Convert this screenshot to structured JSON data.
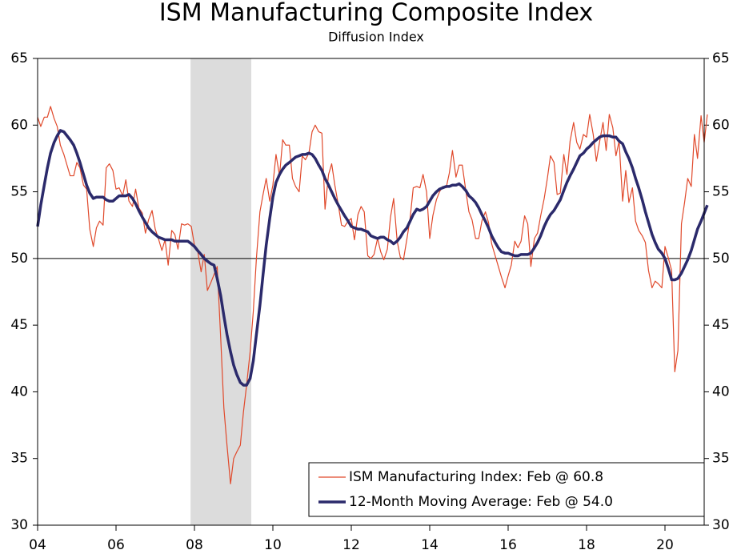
{
  "chart_data": {
    "type": "line",
    "title": "ISM Manufacturing Composite Index",
    "subtitle": "Diffusion Index",
    "x": [
      2004.0,
      2004.08,
      2004.17,
      2004.25,
      2004.33,
      2004.42,
      2004.5,
      2004.58,
      2004.67,
      2004.75,
      2004.83,
      2004.92,
      2005.0,
      2005.08,
      2005.17,
      2005.25,
      2005.33,
      2005.42,
      2005.5,
      2005.58,
      2005.67,
      2005.75,
      2005.83,
      2005.92,
      2006.0,
      2006.08,
      2006.17,
      2006.25,
      2006.33,
      2006.42,
      2006.5,
      2006.58,
      2006.67,
      2006.75,
      2006.83,
      2006.92,
      2007.0,
      2007.08,
      2007.17,
      2007.25,
      2007.33,
      2007.42,
      2007.5,
      2007.58,
      2007.67,
      2007.75,
      2007.83,
      2007.92,
      2008.0,
      2008.08,
      2008.17,
      2008.25,
      2008.33,
      2008.42,
      2008.5,
      2008.58,
      2008.67,
      2008.75,
      2008.83,
      2008.92,
      2009.0,
      2009.08,
      2009.17,
      2009.25,
      2009.33,
      2009.42,
      2009.5,
      2009.58,
      2009.67,
      2009.75,
      2009.83,
      2009.92,
      2010.0,
      2010.08,
      2010.17,
      2010.25,
      2010.33,
      2010.42,
      2010.5,
      2010.58,
      2010.67,
      2010.75,
      2010.83,
      2010.92,
      2011.0,
      2011.08,
      2011.17,
      2011.25,
      2011.33,
      2011.42,
      2011.5,
      2011.58,
      2011.67,
      2011.75,
      2011.83,
      2011.92,
      2012.0,
      2012.08,
      2012.17,
      2012.25,
      2012.33,
      2012.42,
      2012.5,
      2012.58,
      2012.67,
      2012.75,
      2012.83,
      2012.92,
      2013.0,
      2013.08,
      2013.17,
      2013.25,
      2013.33,
      2013.42,
      2013.5,
      2013.58,
      2013.67,
      2013.75,
      2013.83,
      2013.92,
      2014.0,
      2014.08,
      2014.17,
      2014.25,
      2014.33,
      2014.42,
      2014.5,
      2014.58,
      2014.67,
      2014.75,
      2014.83,
      2014.92,
      2015.0,
      2015.08,
      2015.17,
      2015.25,
      2015.33,
      2015.42,
      2015.5,
      2015.58,
      2015.67,
      2015.75,
      2015.83,
      2015.92,
      2016.0,
      2016.08,
      2016.17,
      2016.25,
      2016.33,
      2016.42,
      2016.5,
      2016.58,
      2016.67,
      2016.75,
      2016.83,
      2016.92,
      2017.0,
      2017.08,
      2017.17,
      2017.25,
      2017.33,
      2017.42,
      2017.5,
      2017.58,
      2017.67,
      2017.75,
      2017.83,
      2017.92,
      2018.0,
      2018.08,
      2018.17,
      2018.25,
      2018.33,
      2018.42,
      2018.5,
      2018.58,
      2018.67,
      2018.75,
      2018.83,
      2018.92,
      2019.0,
      2019.08,
      2019.17,
      2019.25,
      2019.33,
      2019.42,
      2019.5,
      2019.58,
      2019.67,
      2019.75,
      2019.83,
      2019.92,
      2020.0,
      2020.08,
      2020.17,
      2020.25,
      2020.33,
      2020.42,
      2020.5,
      2020.58,
      2020.67,
      2020.75,
      2020.83,
      2020.92,
      2021.0,
      2021.08
    ],
    "series": [
      {
        "name": "ISM Manufacturing Index: Feb @ 60.8",
        "color": "#e0492b",
        "width": 1.2,
        "values": [
          60.6,
          59.9,
          60.6,
          60.6,
          61.4,
          60.5,
          59.9,
          58.5,
          57.8,
          57.0,
          56.2,
          56.2,
          57.2,
          56.8,
          55.5,
          55.2,
          52.2,
          50.9,
          52.3,
          52.8,
          52.5,
          56.8,
          57.1,
          56.6,
          55.2,
          55.3,
          54.7,
          55.9,
          54.3,
          53.9,
          55.2,
          53.8,
          53.4,
          51.9,
          52.9,
          53.6,
          52.2,
          51.5,
          50.6,
          51.4,
          49.5,
          52.1,
          51.8,
          50.7,
          52.6,
          52.5,
          52.6,
          52.4,
          51.0,
          50.6,
          49.0,
          50.3,
          47.6,
          48.2,
          48.8,
          49.4,
          44.0,
          38.8,
          36.0,
          33.1,
          35.0,
          35.5,
          36.0,
          38.5,
          40.5,
          43.0,
          46.0,
          50.0,
          53.5,
          54.8,
          56.0,
          54.3,
          55.5,
          57.8,
          56.2,
          58.9,
          58.5,
          58.5,
          56.0,
          55.4,
          55.0,
          57.7,
          57.4,
          57.9,
          59.5,
          60.0,
          59.5,
          59.4,
          53.7,
          56.3,
          57.1,
          55.5,
          54.0,
          52.5,
          52.4,
          52.8,
          53.0,
          51.4,
          53.3,
          53.9,
          53.5,
          50.2,
          50.0,
          50.3,
          51.5,
          50.5,
          49.9,
          50.7,
          53.1,
          54.5,
          51.3,
          50.1,
          49.9,
          51.5,
          53.0,
          55.3,
          55.4,
          55.3,
          56.3,
          55.0,
          51.5,
          53.2,
          54.4,
          55.0,
          55.4,
          55.3,
          56.4,
          58.1,
          56.1,
          57.0,
          57.0,
          55.1,
          53.5,
          52.9,
          51.5,
          51.5,
          52.8,
          53.5,
          52.7,
          51.1,
          50.2,
          49.4,
          48.6,
          47.8,
          48.7,
          49.5,
          51.3,
          50.8,
          51.3,
          53.2,
          52.6,
          49.4,
          51.5,
          51.9,
          53.2,
          54.5,
          56.0,
          57.7,
          57.2,
          54.8,
          54.9,
          57.8,
          56.3,
          58.8,
          60.2,
          58.7,
          58.2,
          59.3,
          59.1,
          60.8,
          59.3,
          57.3,
          58.7,
          60.2,
          58.1,
          60.8,
          59.8,
          57.7,
          58.8,
          54.3,
          56.6,
          54.2,
          55.3,
          52.8,
          52.1,
          51.7,
          51.2,
          49.1,
          47.8,
          48.3,
          48.1,
          47.8,
          50.9,
          50.1,
          49.1,
          41.5,
          43.1,
          52.6,
          54.2,
          56.0,
          55.4,
          59.3,
          57.5,
          60.7,
          58.7,
          60.8
        ]
      },
      {
        "name": "12-Month Moving Average: Feb @ 54.0",
        "color": "#2b2a6b",
        "width": 3.5,
        "values": [
          52.4,
          54.0,
          55.5,
          56.8,
          57.9,
          58.7,
          59.2,
          59.6,
          59.5,
          59.2,
          58.9,
          58.5,
          57.9,
          57.2,
          56.3,
          55.5,
          54.9,
          54.5,
          54.6,
          54.6,
          54.6,
          54.4,
          54.3,
          54.3,
          54.5,
          54.7,
          54.7,
          54.7,
          54.8,
          54.5,
          54.1,
          53.6,
          53.1,
          52.7,
          52.3,
          52.0,
          51.8,
          51.6,
          51.5,
          51.4,
          51.4,
          51.4,
          51.3,
          51.3,
          51.3,
          51.3,
          51.3,
          51.1,
          50.9,
          50.6,
          50.3,
          50.0,
          49.8,
          49.6,
          49.5,
          48.5,
          47.2,
          45.7,
          44.3,
          43.0,
          42.0,
          41.3,
          40.7,
          40.5,
          40.5,
          41.0,
          42.3,
          44.3,
          46.5,
          48.8,
          51.0,
          53.0,
          54.6,
          55.7,
          56.3,
          56.7,
          57.0,
          57.2,
          57.4,
          57.6,
          57.7,
          57.8,
          57.8,
          57.9,
          57.8,
          57.5,
          57.0,
          56.6,
          56.0,
          55.5,
          55.0,
          54.5,
          54.0,
          53.6,
          53.2,
          52.8,
          52.4,
          52.3,
          52.2,
          52.2,
          52.1,
          52.0,
          51.7,
          51.6,
          51.5,
          51.6,
          51.6,
          51.4,
          51.3,
          51.1,
          51.3,
          51.6,
          52.0,
          52.3,
          52.8,
          53.3,
          53.7,
          53.6,
          53.7,
          53.9,
          54.3,
          54.7,
          55.0,
          55.2,
          55.3,
          55.4,
          55.4,
          55.5,
          55.5,
          55.6,
          55.4,
          55.1,
          54.7,
          54.5,
          54.2,
          53.8,
          53.3,
          52.8,
          52.3,
          51.7,
          51.2,
          50.8,
          50.5,
          50.4,
          50.4,
          50.3,
          50.2,
          50.2,
          50.3,
          50.3,
          50.3,
          50.4,
          50.8,
          51.2,
          51.7,
          52.4,
          52.9,
          53.3,
          53.6,
          54.0,
          54.4,
          55.1,
          55.7,
          56.2,
          56.7,
          57.2,
          57.7,
          57.9,
          58.2,
          58.4,
          58.7,
          58.9,
          59.1,
          59.2,
          59.2,
          59.2,
          59.1,
          59.1,
          58.8,
          58.6,
          58.0,
          57.5,
          56.8,
          56.0,
          55.3,
          54.4,
          53.5,
          52.7,
          51.8,
          51.2,
          50.7,
          50.4,
          50.0,
          49.3,
          48.4,
          48.4,
          48.5,
          48.9,
          49.4,
          49.9,
          50.6,
          51.4,
          52.2,
          52.8,
          53.4,
          54.0
        ]
      }
    ],
    "xlim": [
      2004,
      2021
    ],
    "xticks": [
      {
        "value": 2004,
        "label": "04"
      },
      {
        "value": 2006,
        "label": "06"
      },
      {
        "value": 2008,
        "label": "08"
      },
      {
        "value": 2010,
        "label": "10"
      },
      {
        "value": 2012,
        "label": "12"
      },
      {
        "value": 2014,
        "label": "14"
      },
      {
        "value": 2016,
        "label": "16"
      },
      {
        "value": 2018,
        "label": "18"
      },
      {
        "value": 2020,
        "label": "20"
      }
    ],
    "ylim": [
      30,
      65
    ],
    "yticks": [
      30,
      35,
      40,
      45,
      50,
      55,
      60,
      65
    ],
    "y2lim": [
      30,
      65
    ],
    "y2ticks": [
      30,
      35,
      40,
      45,
      50,
      55,
      60,
      65
    ],
    "reference_line": 50,
    "shaded_region": [
      2007.9,
      2009.45
    ],
    "shade_color": "#dcdcdc",
    "legend": "lower-right"
  }
}
